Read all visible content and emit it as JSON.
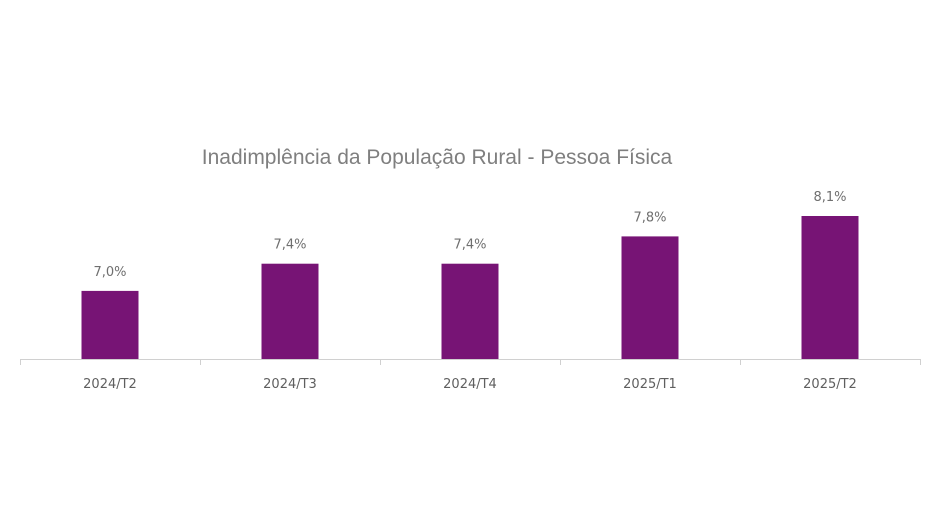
{
  "colors": {
    "bar": "#771475",
    "axis": "#d0d0d0",
    "title": "#7f7f7f",
    "label": "#6f6f6f"
  },
  "chart_data": {
    "type": "bar",
    "title": "Inadimplência da População Rural - Pessoa Física",
    "xlabel": "",
    "ylabel": "",
    "categories": [
      "2024/T2",
      "2024/T3",
      "2024/T4",
      "2025/T1",
      "2025/T2"
    ],
    "values": [
      7.0,
      7.4,
      7.4,
      7.8,
      8.1
    ],
    "data_labels": [
      "7,0%",
      "7,4%",
      "7,4%",
      "7,8%",
      "8,1%"
    ],
    "ylim": [
      6.0,
      8.1
    ],
    "grid": false,
    "legend": "none"
  }
}
